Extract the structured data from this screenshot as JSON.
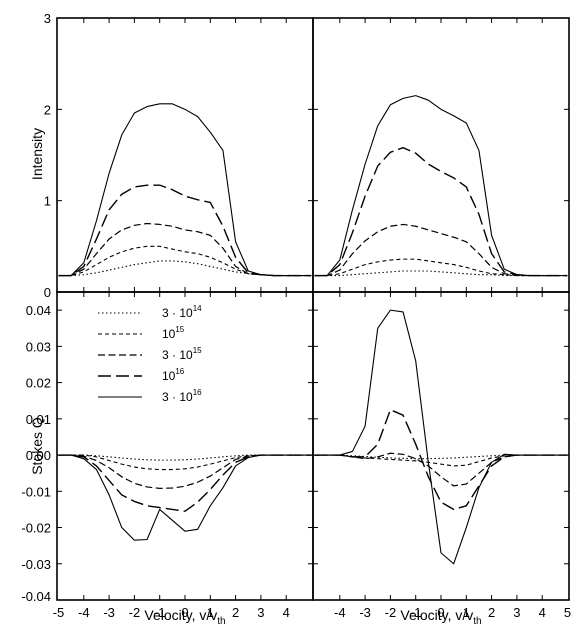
{
  "chart_data": {
    "type": "line",
    "x_axis": {
      "label_main": "Velocity, v/v",
      "label_sub": "th",
      "left_ticks": [
        "-5",
        "-4",
        "-3",
        "-2",
        "-1",
        "0",
        "1",
        "2",
        "3",
        "4"
      ],
      "right_ticks": [
        "-4",
        "-3",
        "-2",
        "-1",
        "0",
        "1",
        "2",
        "3",
        "4",
        "5"
      ],
      "xlim": [
        -5,
        5
      ]
    },
    "top_y_axis": {
      "label": "Intensity",
      "ylim": [
        0,
        3
      ],
      "ticks": [
        "0",
        "1",
        "2",
        "3"
      ]
    },
    "bottom_y_axis": {
      "label": "Stokes Q",
      "ylim": [
        -0.04,
        0.045
      ],
      "ticks": [
        "-0.04",
        "-0.03",
        "-0.02",
        "-0.01",
        "0.00",
        "0.01",
        "0.02",
        "0.03",
        "0.04"
      ]
    },
    "grid": false,
    "legend": {
      "placement": "top-left of bottom-left panel",
      "entries": [
        {
          "base": "3 · 10",
          "exp": "14",
          "dash": "1.5,2.5",
          "width": 1.1
        },
        {
          "base": "10",
          "exp": "15",
          "dash": "4,3",
          "width": 1.1
        },
        {
          "base": "3 · 10",
          "exp": "15",
          "dash": "7,3.5",
          "width": 1.2
        },
        {
          "base": "10",
          "exp": "16",
          "dash": "13,5",
          "width": 1.4
        },
        {
          "base": "3 · 10",
          "exp": "16",
          "dash": "",
          "width": 1.1
        }
      ]
    },
    "panels": [
      {
        "name": "top-left",
        "quantity": "intensity",
        "x": [
          -5,
          -4.5,
          -4,
          -3.5,
          -3,
          -2.5,
          -2,
          -1.5,
          -1,
          -0.5,
          0,
          0.5,
          1,
          1.5,
          2,
          2.5,
          3,
          3.5,
          4,
          4.5,
          5
        ],
        "series": [
          {
            "legend_index": 0,
            "values": [
              0.18,
              0.18,
              0.19,
              0.21,
              0.24,
              0.27,
              0.3,
              0.32,
              0.34,
              0.34,
              0.33,
              0.31,
              0.28,
              0.25,
              0.22,
              0.2,
              0.19,
              0.18,
              0.18,
              0.18,
              0.18
            ]
          },
          {
            "legend_index": 1,
            "values": [
              0.18,
              0.18,
              0.22,
              0.3,
              0.38,
              0.44,
              0.48,
              0.5,
              0.5,
              0.47,
              0.44,
              0.42,
              0.38,
              0.32,
              0.25,
              0.2,
              0.19,
              0.18,
              0.18,
              0.18,
              0.18
            ]
          },
          {
            "legend_index": 2,
            "values": [
              0.18,
              0.18,
              0.25,
              0.42,
              0.58,
              0.68,
              0.73,
              0.75,
              0.74,
              0.72,
              0.68,
              0.66,
              0.62,
              0.48,
              0.28,
              0.2,
              0.19,
              0.18,
              0.18,
              0.18,
              0.18
            ]
          },
          {
            "legend_index": 3,
            "values": [
              0.18,
              0.18,
              0.28,
              0.58,
              0.9,
              1.07,
              1.15,
              1.17,
              1.17,
              1.12,
              1.05,
              1.01,
              0.98,
              0.72,
              0.38,
              0.21,
              0.19,
              0.18,
              0.18,
              0.18,
              0.18
            ]
          },
          {
            "legend_index": 4,
            "values": [
              0.18,
              0.18,
              0.32,
              0.78,
              1.3,
              1.72,
              1.96,
              2.03,
              2.06,
              2.06,
              2.0,
              1.92,
              1.75,
              1.55,
              0.55,
              0.23,
              0.19,
              0.18,
              0.18,
              0.18,
              0.18
            ]
          }
        ]
      },
      {
        "name": "top-right",
        "quantity": "intensity",
        "x": [
          -5,
          -4.5,
          -4,
          -3.5,
          -3,
          -2.5,
          -2,
          -1.5,
          -1,
          -0.5,
          0,
          0.5,
          1,
          1.5,
          2,
          2.5,
          3,
          3.5,
          4,
          4.5,
          5
        ],
        "series": [
          {
            "legend_index": 0,
            "values": [
              0.18,
              0.18,
              0.18,
              0.19,
              0.2,
              0.21,
              0.22,
              0.23,
              0.23,
              0.23,
              0.22,
              0.21,
              0.2,
              0.19,
              0.19,
              0.18,
              0.18,
              0.18,
              0.18,
              0.18,
              0.18
            ]
          },
          {
            "legend_index": 1,
            "values": [
              0.18,
              0.18,
              0.2,
              0.25,
              0.3,
              0.33,
              0.35,
              0.36,
              0.36,
              0.34,
              0.32,
              0.3,
              0.27,
              0.23,
              0.2,
              0.19,
              0.18,
              0.18,
              0.18,
              0.18,
              0.18
            ]
          },
          {
            "legend_index": 2,
            "values": [
              0.18,
              0.18,
              0.24,
              0.42,
              0.56,
              0.66,
              0.72,
              0.74,
              0.72,
              0.68,
              0.64,
              0.6,
              0.55,
              0.42,
              0.27,
              0.2,
              0.18,
              0.18,
              0.18,
              0.18,
              0.18
            ]
          },
          {
            "legend_index": 3,
            "values": [
              0.18,
              0.18,
              0.3,
              0.65,
              1.05,
              1.38,
              1.53,
              1.58,
              1.52,
              1.4,
              1.32,
              1.25,
              1.15,
              0.85,
              0.42,
              0.22,
              0.19,
              0.18,
              0.18,
              0.18,
              0.18
            ]
          },
          {
            "legend_index": 4,
            "values": [
              0.18,
              0.18,
              0.35,
              0.9,
              1.4,
              1.82,
              2.05,
              2.12,
              2.15,
              2.1,
              2.0,
              1.93,
              1.85,
              1.55,
              0.62,
              0.25,
              0.19,
              0.18,
              0.18,
              0.18,
              0.18
            ]
          }
        ]
      },
      {
        "name": "bottom-left",
        "quantity": "stokes_q",
        "x": [
          -5,
          -4.5,
          -4,
          -3.5,
          -3,
          -2.5,
          -2,
          -1.5,
          -1,
          -0.5,
          0,
          0.5,
          1,
          1.5,
          2,
          2.5,
          3,
          3.5,
          4,
          4.5,
          5
        ],
        "series": [
          {
            "legend_index": 0,
            "values": [
              0,
              0,
              0,
              -0.0002,
              -0.0005,
              -0.0008,
              -0.0011,
              -0.0013,
              -0.0014,
              -0.0014,
              -0.0013,
              -0.0011,
              -0.0008,
              -0.0005,
              -0.0002,
              0,
              0,
              0,
              0,
              0,
              0
            ]
          },
          {
            "legend_index": 1,
            "values": [
              0,
              0,
              0,
              -0.0005,
              -0.0015,
              -0.0025,
              -0.0033,
              -0.0038,
              -0.004,
              -0.004,
              -0.0038,
              -0.0033,
              -0.0025,
              -0.0016,
              -0.0007,
              -0.0002,
              0,
              0,
              0,
              0,
              0
            ]
          },
          {
            "legend_index": 2,
            "values": [
              0,
              0,
              -0.0003,
              -0.0015,
              -0.0035,
              -0.006,
              -0.0078,
              -0.0088,
              -0.0092,
              -0.0091,
              -0.0086,
              -0.0075,
              -0.0058,
              -0.0035,
              -0.0012,
              -0.0003,
              0,
              0,
              0,
              0,
              0
            ]
          },
          {
            "legend_index": 3,
            "values": [
              0,
              0,
              -0.0005,
              -0.003,
              -0.007,
              -0.011,
              -0.0128,
              -0.014,
              -0.0145,
              -0.015,
              -0.0155,
              -0.013,
              -0.0095,
              -0.0055,
              -0.002,
              -0.0005,
              0,
              0,
              0,
              0,
              0
            ]
          },
          {
            "legend_index": 4,
            "values": [
              0,
              0,
              -0.001,
              -0.004,
              -0.011,
              -0.02,
              -0.0235,
              -0.0233,
              -0.015,
              -0.018,
              -0.021,
              -0.0205,
              -0.014,
              -0.009,
              -0.003,
              -0.0007,
              0,
              0,
              0,
              0,
              0
            ]
          }
        ]
      },
      {
        "name": "bottom-right",
        "quantity": "stokes_q",
        "x": [
          -5,
          -4.5,
          -4,
          -3.5,
          -3,
          -2.5,
          -2,
          -1.5,
          -1,
          -0.5,
          0,
          0.5,
          1,
          1.5,
          2,
          2.5,
          3,
          3.5,
          4,
          4.5,
          5
        ],
        "series": [
          {
            "legend_index": 0,
            "values": [
              0,
              0,
              0,
              -0.0002,
              -0.0004,
              -0.0006,
              -0.0008,
              -0.0009,
              -0.001,
              -0.001,
              -0.0009,
              -0.0008,
              -0.0006,
              -0.0004,
              -0.0002,
              0,
              0,
              0,
              0,
              0,
              0
            ]
          },
          {
            "legend_index": 1,
            "values": [
              0,
              0,
              0,
              -0.0005,
              -0.0008,
              -0.001,
              -0.0012,
              -0.0014,
              -0.0016,
              -0.002,
              -0.0025,
              -0.003,
              -0.0028,
              -0.0018,
              -0.0008,
              -0.0002,
              0,
              0,
              0,
              0,
              0
            ]
          },
          {
            "legend_index": 2,
            "values": [
              0,
              0,
              0,
              -0.0005,
              -0.001,
              -0.0005,
              0.0005,
              0.0002,
              -0.001,
              -0.003,
              -0.006,
              -0.0085,
              -0.008,
              -0.005,
              -0.002,
              -0.0005,
              0,
              0,
              0,
              0,
              0
            ]
          },
          {
            "legend_index": 3,
            "values": [
              0,
              0,
              0,
              -0.0005,
              -0.0005,
              0.003,
              0.0125,
              0.011,
              0.003,
              -0.006,
              -0.013,
              -0.015,
              -0.014,
              -0.0085,
              -0.003,
              -0.0005,
              0,
              0,
              0,
              0,
              0
            ]
          },
          {
            "legend_index": 4,
            "values": [
              0,
              0,
              0,
              0.001,
              0.008,
              0.035,
              0.04,
              0.0395,
              0.026,
              -0.002,
              -0.027,
              -0.03,
              -0.02,
              -0.009,
              -0.002,
              0.0002,
              0,
              0,
              0,
              0,
              0
            ]
          }
        ]
      }
    ]
  }
}
